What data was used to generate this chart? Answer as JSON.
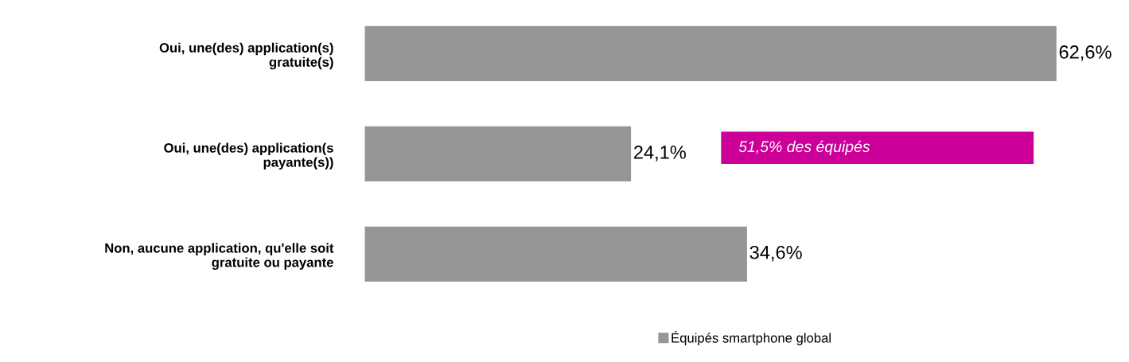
{
  "chart_data": {
    "type": "bar",
    "orientation": "horizontal",
    "categories": [
      "Oui, une(des) application(s)\ngratuite(s)",
      "Oui, une(des) application(s\npayante(s))",
      "Non, aucune application, qu'elle soit\ngratuite ou payante"
    ],
    "series": [
      {
        "name": "Équipés smartphone global",
        "color": "#969696",
        "values": [
          62.6,
          24.1,
          34.6
        ],
        "value_labels": [
          "62,6%",
          "24,1%",
          "34,6%"
        ]
      }
    ],
    "annotations": [
      "51,5% des équipés"
    ],
    "legend": "bottom",
    "grid": false
  }
}
